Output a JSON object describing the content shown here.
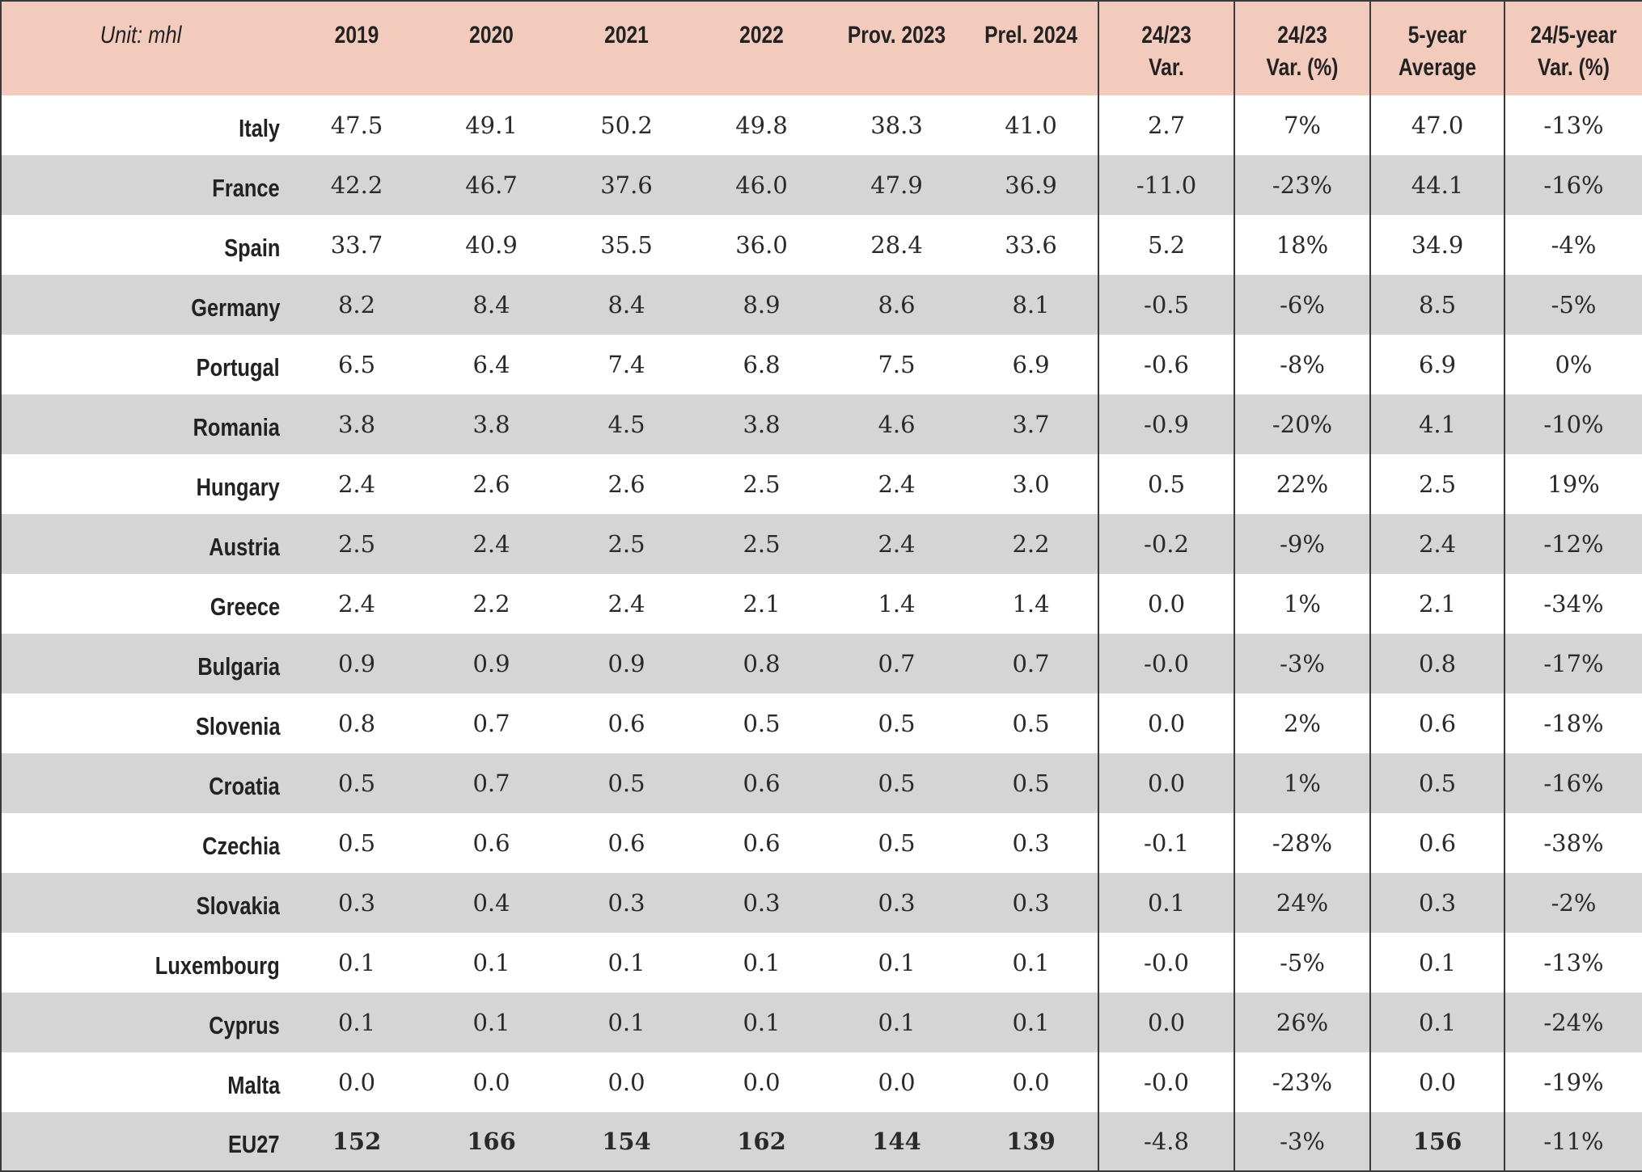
{
  "table": {
    "unit_label": "Unit: mhl",
    "columns": [
      "2019",
      "2020",
      "2021",
      "2022",
      "Prov. 2023",
      "Prel. 2024",
      "24/23\nVar.",
      "24/23\nVar. (%)",
      "5-year\nAverage",
      "24/5-year\nVar. (%)"
    ],
    "rows": [
      {
        "country": "Italy",
        "values": [
          "47.5",
          "49.1",
          "50.2",
          "49.8",
          "38.3",
          "41.0",
          "2.7",
          "7%",
          "47.0",
          "-13%"
        ]
      },
      {
        "country": "France",
        "values": [
          "42.2",
          "46.7",
          "37.6",
          "46.0",
          "47.9",
          "36.9",
          "-11.0",
          "-23%",
          "44.1",
          "-16%"
        ]
      },
      {
        "country": "Spain",
        "values": [
          "33.7",
          "40.9",
          "35.5",
          "36.0",
          "28.4",
          "33.6",
          "5.2",
          "18%",
          "34.9",
          "-4%"
        ]
      },
      {
        "country": "Germany",
        "values": [
          "8.2",
          "8.4",
          "8.4",
          "8.9",
          "8.6",
          "8.1",
          "-0.5",
          "-6%",
          "8.5",
          "-5%"
        ]
      },
      {
        "country": "Portugal",
        "values": [
          "6.5",
          "6.4",
          "7.4",
          "6.8",
          "7.5",
          "6.9",
          "-0.6",
          "-8%",
          "6.9",
          "0%"
        ]
      },
      {
        "country": "Romania",
        "values": [
          "3.8",
          "3.8",
          "4.5",
          "3.8",
          "4.6",
          "3.7",
          "-0.9",
          "-20%",
          "4.1",
          "-10%"
        ]
      },
      {
        "country": "Hungary",
        "values": [
          "2.4",
          "2.6",
          "2.6",
          "2.5",
          "2.4",
          "3.0",
          "0.5",
          "22%",
          "2.5",
          "19%"
        ]
      },
      {
        "country": "Austria",
        "values": [
          "2.5",
          "2.4",
          "2.5",
          "2.5",
          "2.4",
          "2.2",
          "-0.2",
          "-9%",
          "2.4",
          "-12%"
        ]
      },
      {
        "country": "Greece",
        "values": [
          "2.4",
          "2.2",
          "2.4",
          "2.1",
          "1.4",
          "1.4",
          "0.0",
          "1%",
          "2.1",
          "-34%"
        ]
      },
      {
        "country": "Bulgaria",
        "values": [
          "0.9",
          "0.9",
          "0.9",
          "0.8",
          "0.7",
          "0.7",
          "-0.0",
          "-3%",
          "0.8",
          "-17%"
        ]
      },
      {
        "country": "Slovenia",
        "values": [
          "0.8",
          "0.7",
          "0.6",
          "0.5",
          "0.5",
          "0.5",
          "0.0",
          "2%",
          "0.6",
          "-18%"
        ]
      },
      {
        "country": "Croatia",
        "values": [
          "0.5",
          "0.7",
          "0.5",
          "0.6",
          "0.5",
          "0.5",
          "0.0",
          "1%",
          "0.5",
          "-16%"
        ]
      },
      {
        "country": "Czechia",
        "values": [
          "0.5",
          "0.6",
          "0.6",
          "0.6",
          "0.5",
          "0.3",
          "-0.1",
          "-28%",
          "0.6",
          "-38%"
        ]
      },
      {
        "country": "Slovakia",
        "values": [
          "0.3",
          "0.4",
          "0.3",
          "0.3",
          "0.3",
          "0.3",
          "0.1",
          "24%",
          "0.3",
          "-2%"
        ]
      },
      {
        "country": "Luxembourg",
        "values": [
          "0.1",
          "0.1",
          "0.1",
          "0.1",
          "0.1",
          "0.1",
          "-0.0",
          "-5%",
          "0.1",
          "-13%"
        ]
      },
      {
        "country": "Cyprus",
        "values": [
          "0.1",
          "0.1",
          "0.1",
          "0.1",
          "0.1",
          "0.1",
          "0.0",
          "26%",
          "0.1",
          "-24%"
        ]
      },
      {
        "country": "Malta",
        "values": [
          "0.0",
          "0.0",
          "0.0",
          "0.0",
          "0.0",
          "0.0",
          "-0.0",
          "-23%",
          "0.0",
          "-19%"
        ]
      }
    ],
    "total": {
      "country": "EU27",
      "values": [
        "152",
        "166",
        "154",
        "162",
        "144",
        "139",
        "-4.8",
        "-3%",
        "156",
        "-11%"
      ]
    }
  },
  "colors": {
    "header_bg": "#f2cbbd",
    "stripe_bg": "#d5d5d6",
    "border": "#3a3a3a"
  }
}
